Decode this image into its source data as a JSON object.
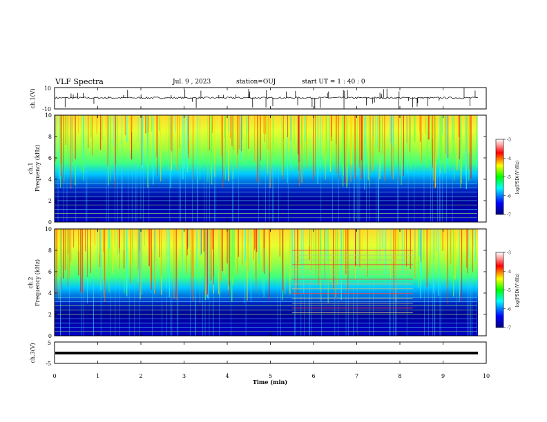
{
  "header": {
    "title": "VLF Spectra",
    "date": "Jul. 9 , 2023",
    "station": "station=OUJ",
    "start_ut": "start UT = 1 : 40 : 0"
  },
  "colors": {
    "waveform": "#000000",
    "spectrogram_low": "#00007f",
    "spectrogram_high": "#ff0000"
  },
  "chart_data": [
    {
      "type": "line",
      "panel": "ch1-waveform",
      "ylabel": "ch.1(V)",
      "ylim": [
        -10,
        10
      ],
      "y_ticks": [
        "10",
        "-10"
      ],
      "xlim": [
        0,
        10
      ]
    },
    {
      "type": "heatmap",
      "panel": "ch1-spectrogram",
      "ylabel_line1": "ch.1",
      "ylabel_line2": "Frequency (kHz)",
      "ylim": [
        0,
        10
      ],
      "y_ticks": [
        "0",
        "2",
        "4",
        "6",
        "8",
        "10"
      ],
      "xlim": [
        0,
        10
      ],
      "colorbar": {
        "label": "log(PSD)(V²/Hz)",
        "range": [
          -7,
          -3
        ],
        "ticks": [
          "-3",
          "-4",
          "-5",
          "-6",
          "-7"
        ]
      }
    },
    {
      "type": "heatmap",
      "panel": "ch2-spectrogram",
      "ylabel_line1": "ch.2",
      "ylabel_line2": "Frequency (kHz)",
      "ylim": [
        0,
        10
      ],
      "y_ticks": [
        "0",
        "2",
        "4",
        "6",
        "8",
        "10"
      ],
      "xlim": [
        0,
        10
      ],
      "colorbar": {
        "label": "log(PSD)(V²/Hz)",
        "range": [
          -7,
          -3
        ],
        "ticks": [
          "-3",
          "-4",
          "-5",
          "-6",
          "-7"
        ]
      }
    },
    {
      "type": "line",
      "panel": "ch3-waveform",
      "ylabel": "ch.3(V)",
      "ylim": [
        -5,
        5
      ],
      "y_ticks": [
        "5",
        "-5"
      ],
      "xlim": [
        0,
        10
      ],
      "xlabel": "Time (min)",
      "x_ticks": [
        "0",
        "1",
        "2",
        "3",
        "4",
        "5",
        "6",
        "7",
        "8",
        "9",
        "10"
      ]
    }
  ]
}
